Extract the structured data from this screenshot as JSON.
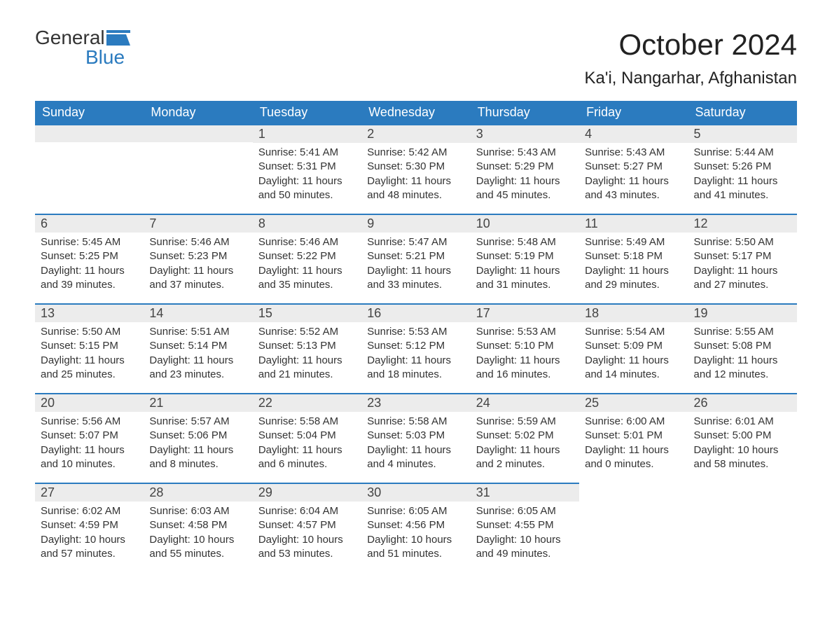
{
  "logo": {
    "word1": "General",
    "word2": "Blue",
    "accent_color": "#2b7bbf"
  },
  "title": "October 2024",
  "location": "Ka'i, Nangarhar, Afghanistan",
  "colors": {
    "header_bg": "#2b7bbf",
    "header_text": "#ffffff",
    "daybar_bg": "#ececec",
    "daybar_border": "#2b7bbf",
    "body_text": "#333333",
    "page_bg": "#ffffff"
  },
  "typography": {
    "title_fontsize": 42,
    "location_fontsize": 24,
    "header_fontsize": 18,
    "daynum_fontsize": 18,
    "cell_fontsize": 15
  },
  "weekdays": [
    "Sunday",
    "Monday",
    "Tuesday",
    "Wednesday",
    "Thursday",
    "Friday",
    "Saturday"
  ],
  "labels": {
    "sunrise": "Sunrise:",
    "sunset": "Sunset:",
    "daylight": "Daylight:"
  },
  "weeks": [
    [
      null,
      null,
      {
        "d": "1",
        "sunrise": "5:41 AM",
        "sunset": "5:31 PM",
        "daylight": "11 hours and 50 minutes."
      },
      {
        "d": "2",
        "sunrise": "5:42 AM",
        "sunset": "5:30 PM",
        "daylight": "11 hours and 48 minutes."
      },
      {
        "d": "3",
        "sunrise": "5:43 AM",
        "sunset": "5:29 PM",
        "daylight": "11 hours and 45 minutes."
      },
      {
        "d": "4",
        "sunrise": "5:43 AM",
        "sunset": "5:27 PM",
        "daylight": "11 hours and 43 minutes."
      },
      {
        "d": "5",
        "sunrise": "5:44 AM",
        "sunset": "5:26 PM",
        "daylight": "11 hours and 41 minutes."
      }
    ],
    [
      {
        "d": "6",
        "sunrise": "5:45 AM",
        "sunset": "5:25 PM",
        "daylight": "11 hours and 39 minutes."
      },
      {
        "d": "7",
        "sunrise": "5:46 AM",
        "sunset": "5:23 PM",
        "daylight": "11 hours and 37 minutes."
      },
      {
        "d": "8",
        "sunrise": "5:46 AM",
        "sunset": "5:22 PM",
        "daylight": "11 hours and 35 minutes."
      },
      {
        "d": "9",
        "sunrise": "5:47 AM",
        "sunset": "5:21 PM",
        "daylight": "11 hours and 33 minutes."
      },
      {
        "d": "10",
        "sunrise": "5:48 AM",
        "sunset": "5:19 PM",
        "daylight": "11 hours and 31 minutes."
      },
      {
        "d": "11",
        "sunrise": "5:49 AM",
        "sunset": "5:18 PM",
        "daylight": "11 hours and 29 minutes."
      },
      {
        "d": "12",
        "sunrise": "5:50 AM",
        "sunset": "5:17 PM",
        "daylight": "11 hours and 27 minutes."
      }
    ],
    [
      {
        "d": "13",
        "sunrise": "5:50 AM",
        "sunset": "5:15 PM",
        "daylight": "11 hours and 25 minutes."
      },
      {
        "d": "14",
        "sunrise": "5:51 AM",
        "sunset": "5:14 PM",
        "daylight": "11 hours and 23 minutes."
      },
      {
        "d": "15",
        "sunrise": "5:52 AM",
        "sunset": "5:13 PM",
        "daylight": "11 hours and 21 minutes."
      },
      {
        "d": "16",
        "sunrise": "5:53 AM",
        "sunset": "5:12 PM",
        "daylight": "11 hours and 18 minutes."
      },
      {
        "d": "17",
        "sunrise": "5:53 AM",
        "sunset": "5:10 PM",
        "daylight": "11 hours and 16 minutes."
      },
      {
        "d": "18",
        "sunrise": "5:54 AM",
        "sunset": "5:09 PM",
        "daylight": "11 hours and 14 minutes."
      },
      {
        "d": "19",
        "sunrise": "5:55 AM",
        "sunset": "5:08 PM",
        "daylight": "11 hours and 12 minutes."
      }
    ],
    [
      {
        "d": "20",
        "sunrise": "5:56 AM",
        "sunset": "5:07 PM",
        "daylight": "11 hours and 10 minutes."
      },
      {
        "d": "21",
        "sunrise": "5:57 AM",
        "sunset": "5:06 PM",
        "daylight": "11 hours and 8 minutes."
      },
      {
        "d": "22",
        "sunrise": "5:58 AM",
        "sunset": "5:04 PM",
        "daylight": "11 hours and 6 minutes."
      },
      {
        "d": "23",
        "sunrise": "5:58 AM",
        "sunset": "5:03 PM",
        "daylight": "11 hours and 4 minutes."
      },
      {
        "d": "24",
        "sunrise": "5:59 AM",
        "sunset": "5:02 PM",
        "daylight": "11 hours and 2 minutes."
      },
      {
        "d": "25",
        "sunrise": "6:00 AM",
        "sunset": "5:01 PM",
        "daylight": "11 hours and 0 minutes."
      },
      {
        "d": "26",
        "sunrise": "6:01 AM",
        "sunset": "5:00 PM",
        "daylight": "10 hours and 58 minutes."
      }
    ],
    [
      {
        "d": "27",
        "sunrise": "6:02 AM",
        "sunset": "4:59 PM",
        "daylight": "10 hours and 57 minutes."
      },
      {
        "d": "28",
        "sunrise": "6:03 AM",
        "sunset": "4:58 PM",
        "daylight": "10 hours and 55 minutes."
      },
      {
        "d": "29",
        "sunrise": "6:04 AM",
        "sunset": "4:57 PM",
        "daylight": "10 hours and 53 minutes."
      },
      {
        "d": "30",
        "sunrise": "6:05 AM",
        "sunset": "4:56 PM",
        "daylight": "10 hours and 51 minutes."
      },
      {
        "d": "31",
        "sunrise": "6:05 AM",
        "sunset": "4:55 PM",
        "daylight": "10 hours and 49 minutes."
      },
      null,
      null
    ]
  ]
}
